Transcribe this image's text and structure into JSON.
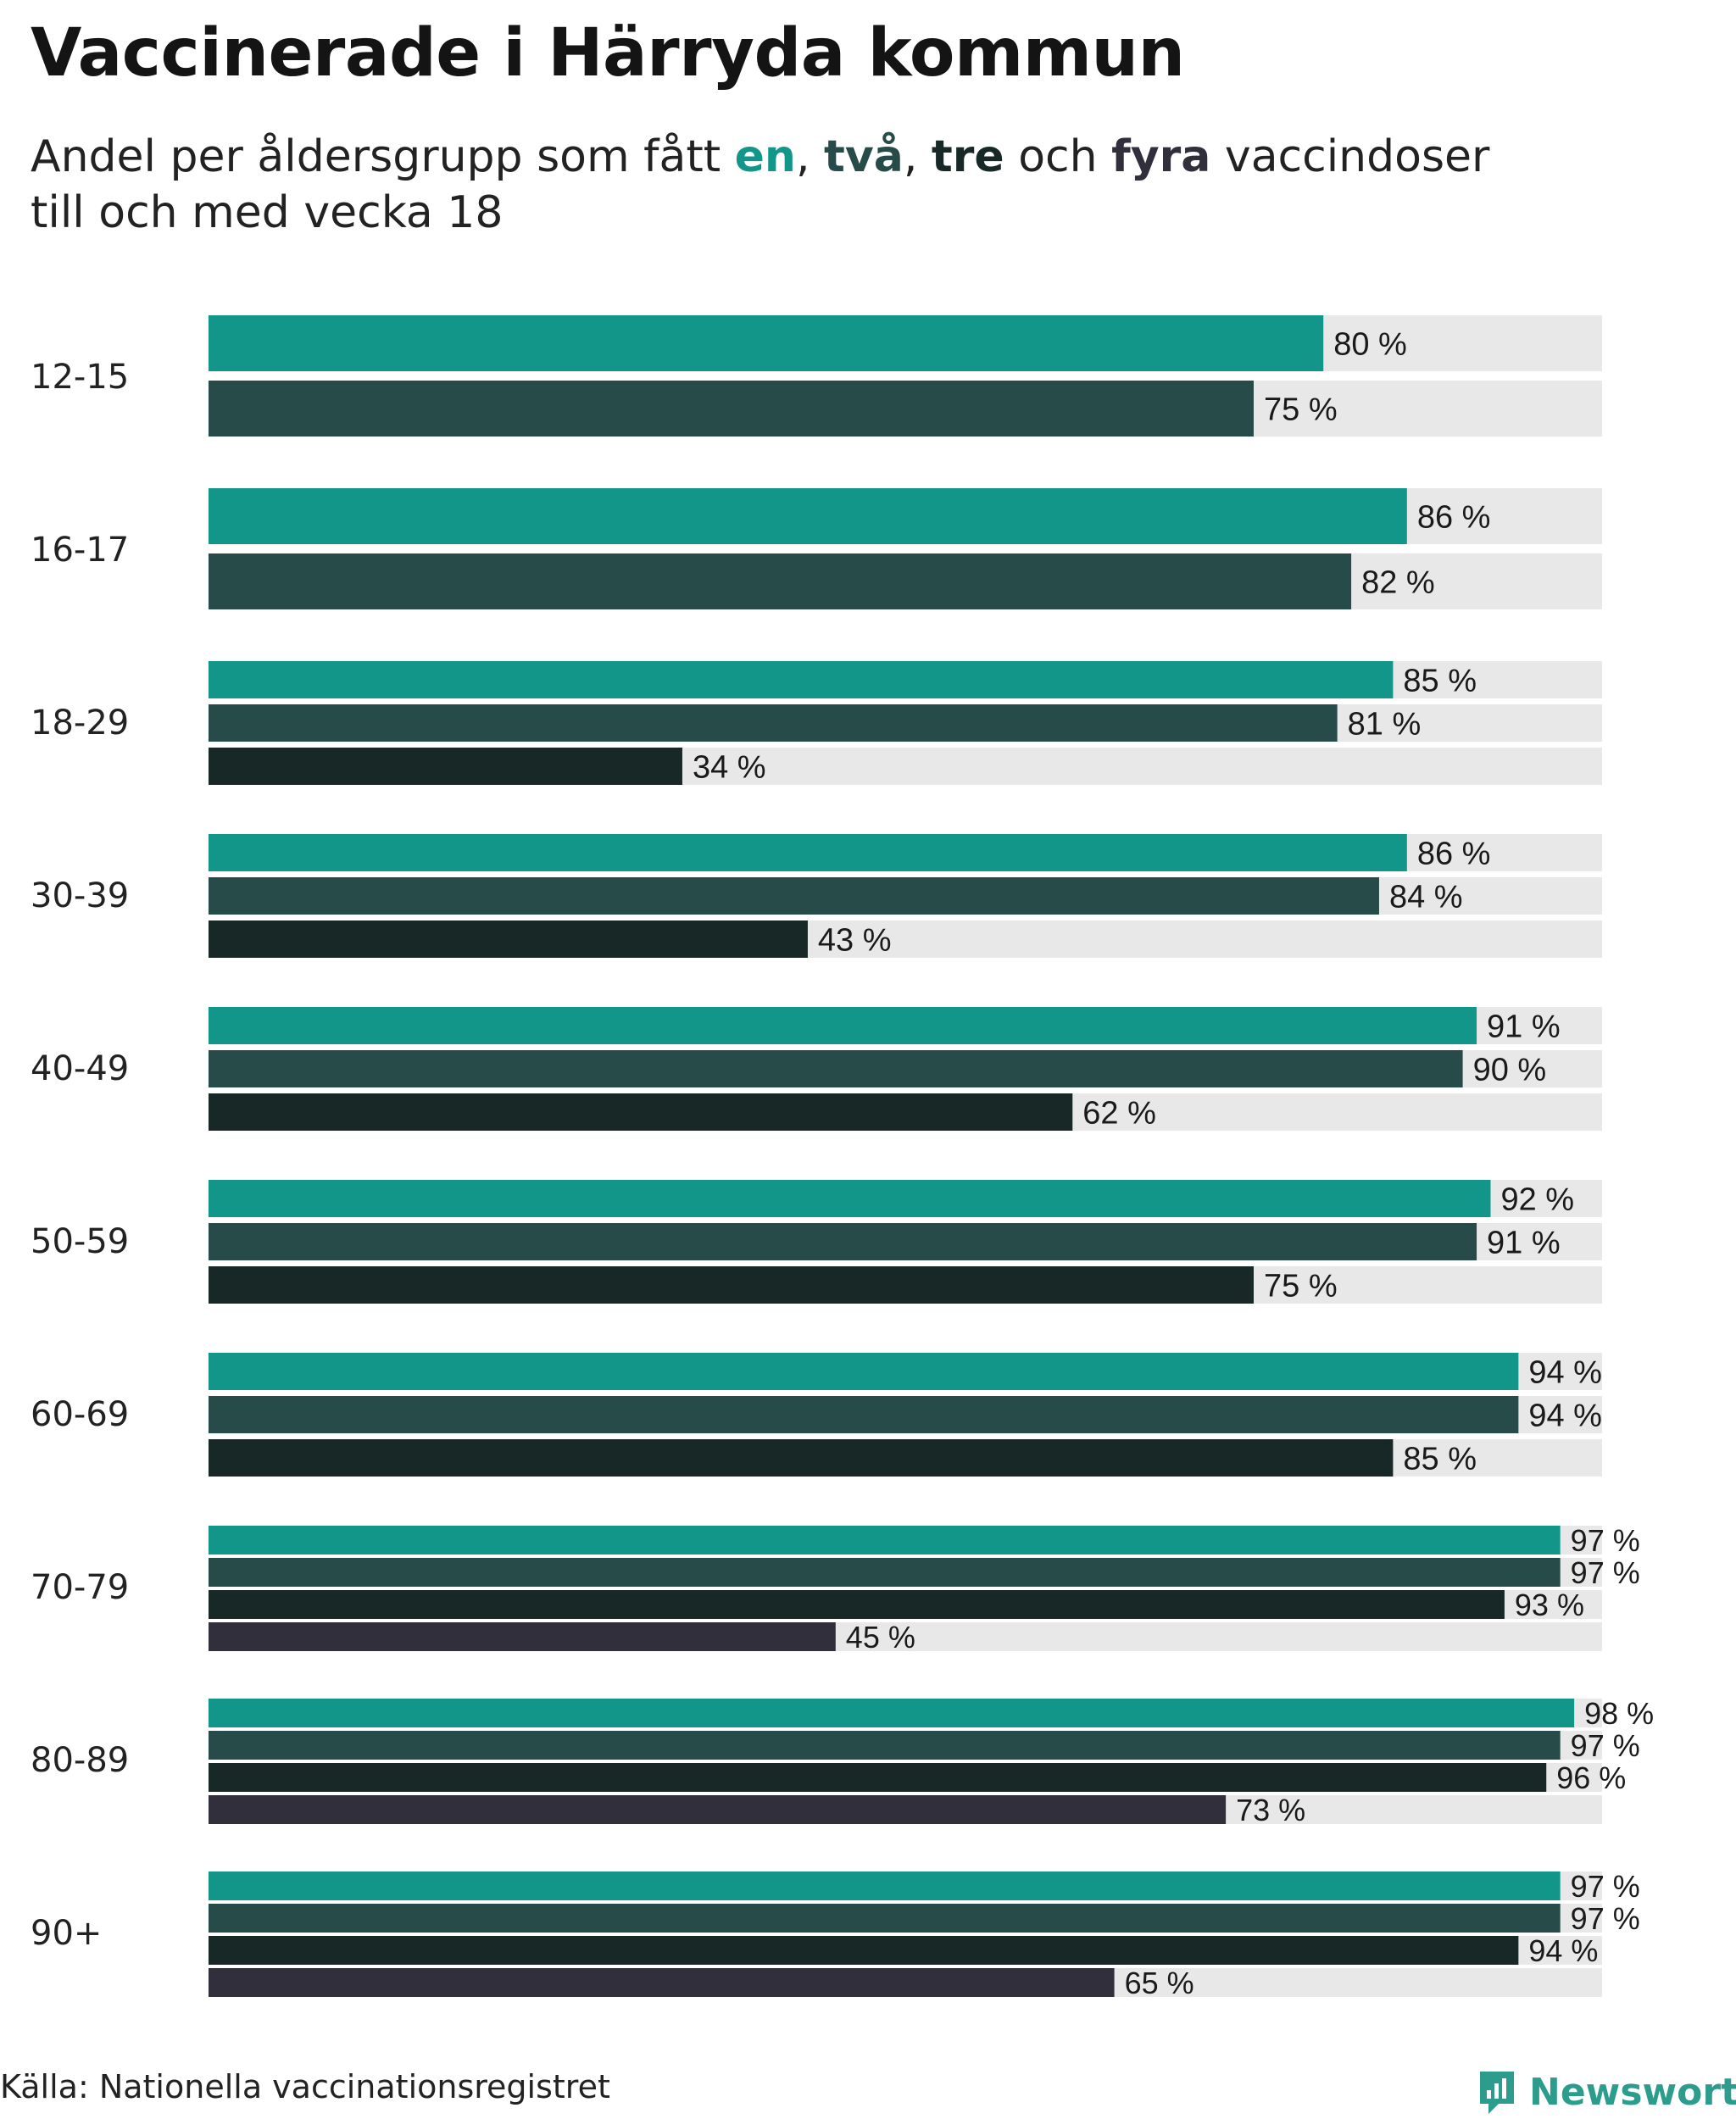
{
  "title": "Vaccinerade i Härryda kommun",
  "subtitle": {
    "prefix": "Andel per åldersgrupp som fått ",
    "k1": "en",
    "sep1": ", ",
    "k2": "två",
    "sep2": ", ",
    "k3": "tre",
    "mid": " och ",
    "k4": "fyra",
    "suffix": " vaccindoser",
    "line2": "till och med vecka 18"
  },
  "colors": {
    "dose1": "#13968a",
    "dose2": "#264b48",
    "dose3": "#182826",
    "dose4": "#302f3b",
    "background_bar": "#e8e8e8"
  },
  "chart_data": {
    "type": "bar",
    "orientation": "horizontal",
    "title": "Vaccinerade i Härryda kommun",
    "xlim": [
      0,
      100
    ],
    "unit": "%",
    "series_names": [
      "en",
      "två",
      "tre",
      "fyra"
    ],
    "groups": [
      {
        "label": "12-15",
        "values": [
          80,
          75
        ]
      },
      {
        "label": "16-17",
        "values": [
          86,
          82
        ]
      },
      {
        "label": "18-29",
        "values": [
          85,
          81,
          34
        ]
      },
      {
        "label": "30-39",
        "values": [
          86,
          84,
          43
        ]
      },
      {
        "label": "40-49",
        "values": [
          91,
          90,
          62
        ]
      },
      {
        "label": "50-59",
        "values": [
          92,
          91,
          75
        ]
      },
      {
        "label": "60-69",
        "values": [
          94,
          94,
          85
        ]
      },
      {
        "label": "70-79",
        "values": [
          97,
          97,
          93,
          45
        ]
      },
      {
        "label": "80-89",
        "values": [
          98,
          97,
          96,
          73
        ]
      },
      {
        "label": "90+",
        "values": [
          97,
          97,
          94,
          65
        ]
      }
    ]
  },
  "footer": {
    "source": "Källa: Nationella vaccinationsregistret",
    "brand": "Newsworthy"
  }
}
